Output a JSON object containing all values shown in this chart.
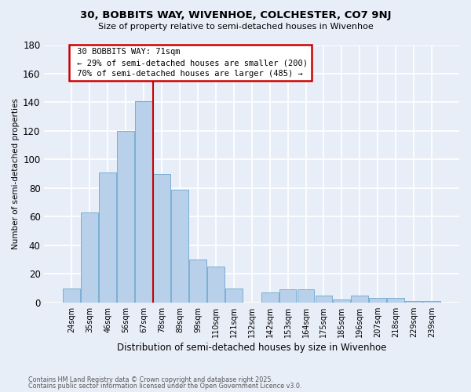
{
  "title1": "30, BOBBITS WAY, WIVENHOE, COLCHESTER, CO7 9NJ",
  "title2": "Size of property relative to semi-detached houses in Wivenhoe",
  "xlabel": "Distribution of semi-detached houses by size in Wivenhoe",
  "ylabel": "Number of semi-detached properties",
  "categories": [
    "24sqm",
    "35sqm",
    "46sqm",
    "56sqm",
    "67sqm",
    "78sqm",
    "89sqm",
    "99sqm",
    "110sqm",
    "121sqm",
    "132sqm",
    "142sqm",
    "153sqm",
    "164sqm",
    "175sqm",
    "185sqm",
    "196sqm",
    "207sqm",
    "218sqm",
    "229sqm",
    "239sqm"
  ],
  "values": [
    10,
    63,
    91,
    120,
    141,
    90,
    79,
    30,
    25,
    10,
    0,
    7,
    9,
    9,
    5,
    2,
    5,
    3,
    3,
    1,
    1
  ],
  "bar_color": "#b8d0ea",
  "bar_edge_color": "#7aafd4",
  "vline_color": "#cc0000",
  "box_edge_color": "#cc0000",
  "marker_label": "30 BOBBITS WAY: 71sqm",
  "pct_smaller": 29,
  "n_smaller": 200,
  "pct_larger": 70,
  "n_larger": 485,
  "ylim": [
    0,
    180
  ],
  "yticks": [
    0,
    20,
    40,
    60,
    80,
    100,
    120,
    140,
    160,
    180
  ],
  "bg_color": "#e8eef8",
  "grid_color": "#ffffff",
  "footer1": "Contains HM Land Registry data © Crown copyright and database right 2025.",
  "footer2": "Contains public sector information licensed under the Open Government Licence v3.0."
}
